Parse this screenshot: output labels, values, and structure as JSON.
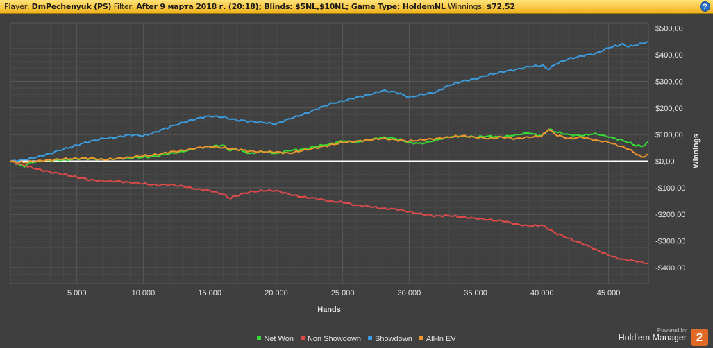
{
  "header": {
    "player_label": "Player:",
    "player_value": "DmPechenyuk (PS)",
    "filter_label": "Filter:",
    "filter_value": "After 9 марта 2018 г. (20:18); Blinds: $5NL,$10NL; Game Type: HoldemNL",
    "winnings_label": "Winnings:",
    "winnings_value": "$72,52",
    "help_icon": "?"
  },
  "chart_data": {
    "type": "line",
    "xlabel": "Hands",
    "ylabel": "Winnings",
    "xlim": [
      0,
      48000
    ],
    "ylim": [
      -460,
      520
    ],
    "x_ticks": [
      5000,
      10000,
      15000,
      20000,
      25000,
      30000,
      35000,
      40000,
      45000
    ],
    "x_tick_labels": [
      "5 000",
      "10 000",
      "15 000",
      "20 000",
      "25 000",
      "30 000",
      "35 000",
      "40 000",
      "45 000"
    ],
    "y_ticks": [
      500,
      400,
      300,
      200,
      100,
      0,
      -100,
      -200,
      -300,
      -400
    ],
    "y_tick_labels": [
      "$500,00",
      "$400,00",
      "$300,00",
      "$200,00",
      "$100,00",
      "$0,00",
      "-$100,00",
      "-$200,00",
      "-$300,00",
      "-$400,00"
    ],
    "grid": true,
    "legend_position": "bottom",
    "series": [
      {
        "name": "Net Won",
        "color": "#33dd33",
        "x": [
          0,
          500,
          1000,
          1500,
          2000,
          3000,
          4000,
          5000,
          6000,
          7000,
          8000,
          9000,
          10000,
          11000,
          12000,
          13000,
          14000,
          15000,
          16000,
          16500,
          17000,
          18000,
          19000,
          20000,
          21000,
          22000,
          23000,
          24000,
          25000,
          26000,
          27000,
          28000,
          29000,
          30000,
          31000,
          32000,
          33000,
          34000,
          35000,
          36000,
          37000,
          38000,
          39000,
          40000,
          40500,
          41000,
          42000,
          43000,
          44000,
          45000,
          46000,
          47000,
          47500,
          48000
        ],
        "values": [
          0,
          -10,
          -20,
          -5,
          0,
          3,
          5,
          8,
          10,
          5,
          10,
          12,
          15,
          18,
          30,
          35,
          50,
          55,
          60,
          40,
          45,
          30,
          35,
          30,
          40,
          45,
          55,
          65,
          75,
          72,
          80,
          90,
          85,
          70,
          65,
          80,
          90,
          95,
          90,
          95,
          90,
          100,
          105,
          95,
          120,
          110,
          100,
          95,
          105,
          90,
          80,
          60,
          55,
          70
        ]
      },
      {
        "name": "Non Showdown",
        "color": "#e24a4a",
        "x": [
          0,
          1000,
          2000,
          3000,
          4000,
          5000,
          6000,
          7000,
          8000,
          9000,
          10000,
          11000,
          12000,
          13000,
          14000,
          15000,
          16000,
          16500,
          17000,
          18000,
          19000,
          20000,
          21000,
          22000,
          23000,
          24000,
          25000,
          26000,
          27000,
          28000,
          29000,
          30000,
          31000,
          32000,
          33000,
          34000,
          35000,
          36000,
          37000,
          38000,
          39000,
          40000,
          41000,
          42000,
          43000,
          44000,
          45000,
          46000,
          47000,
          48000
        ],
        "values": [
          0,
          -15,
          -30,
          -40,
          -50,
          -60,
          -70,
          -75,
          -75,
          -80,
          -85,
          -90,
          -88,
          -95,
          -105,
          -110,
          -125,
          -140,
          -130,
          -115,
          -112,
          -110,
          -125,
          -135,
          -140,
          -150,
          -155,
          -165,
          -170,
          -178,
          -180,
          -190,
          -200,
          -205,
          -205,
          -210,
          -215,
          -220,
          -225,
          -235,
          -245,
          -240,
          -270,
          -290,
          -310,
          -330,
          -355,
          -368,
          -375,
          -385
        ]
      },
      {
        "name": "Showdown",
        "color": "#3a9ee0",
        "x": [
          0,
          1000,
          2000,
          3000,
          4000,
          5000,
          6000,
          7000,
          8000,
          9000,
          10000,
          11000,
          12000,
          13000,
          14000,
          15000,
          16000,
          17000,
          18000,
          19000,
          20000,
          21000,
          22000,
          23000,
          24000,
          25000,
          26000,
          27000,
          28000,
          29000,
          30000,
          31000,
          32000,
          33000,
          34000,
          35000,
          36000,
          37000,
          38000,
          39000,
          40000,
          40500,
          41000,
          42000,
          43000,
          44000,
          45000,
          46000,
          46500,
          47000,
          48000
        ],
        "values": [
          0,
          5,
          15,
          30,
          45,
          60,
          75,
          85,
          90,
          100,
          95,
          110,
          130,
          145,
          160,
          170,
          165,
          155,
          150,
          145,
          140,
          160,
          175,
          195,
          215,
          225,
          240,
          250,
          265,
          260,
          240,
          250,
          260,
          285,
          300,
          310,
          325,
          335,
          345,
          355,
          360,
          345,
          365,
          385,
          395,
          405,
          425,
          440,
          430,
          435,
          450
        ]
      },
      {
        "name": "All-In EV",
        "color": "#f0962e",
        "x": [
          0,
          1000,
          2000,
          3000,
          4000,
          5000,
          6000,
          7000,
          8000,
          9000,
          10000,
          11000,
          12000,
          13000,
          14000,
          15000,
          16000,
          17000,
          18000,
          19000,
          20000,
          21000,
          22000,
          23000,
          24000,
          25000,
          26000,
          27000,
          28000,
          29000,
          30000,
          31000,
          32000,
          33000,
          34000,
          35000,
          36000,
          37000,
          38000,
          39000,
          40000,
          40500,
          41000,
          42000,
          43000,
          44000,
          45000,
          46000,
          46500,
          47000,
          47500,
          48000
        ],
        "values": [
          0,
          -5,
          0,
          5,
          8,
          10,
          12,
          5,
          10,
          15,
          20,
          25,
          35,
          40,
          50,
          55,
          50,
          45,
          38,
          35,
          35,
          30,
          40,
          50,
          60,
          70,
          75,
          80,
          85,
          80,
          75,
          80,
          85,
          90,
          95,
          90,
          85,
          90,
          85,
          90,
          95,
          120,
          100,
          85,
          90,
          80,
          70,
          55,
          45,
          30,
          15,
          25
        ]
      }
    ]
  },
  "branding": {
    "powered_by": "Powered by",
    "app_name": "Hold'em Manager",
    "logo_text": "2"
  }
}
